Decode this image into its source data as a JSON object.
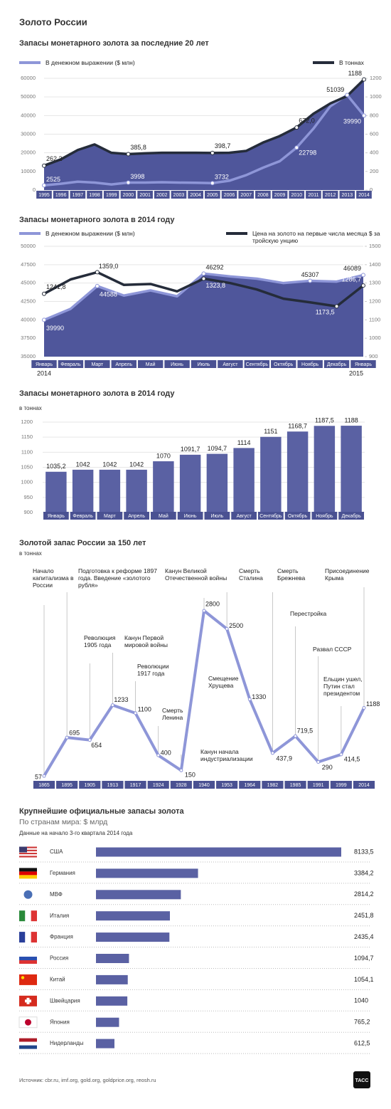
{
  "title": "Золото России",
  "chart_data": [
    {
      "type": "area",
      "title": "Запасы монетарного золота за последние 20 лет",
      "categories": [
        "1995",
        "1996",
        "1997",
        "1998",
        "1999",
        "2000",
        "2001",
        "2002",
        "2003",
        "2004",
        "2005",
        "2006",
        "2007",
        "2008",
        "2009",
        "2010",
        "2011",
        "2012",
        "2013",
        "2014"
      ],
      "series": [
        {
          "name": "В денежном выражении ($ млн)",
          "color": "#8e96d8",
          "values": [
            2525,
            3400,
            4500,
            4000,
            3000,
            3998,
            4000,
            4200,
            4000,
            3900,
            3732,
            5000,
            8000,
            12000,
            15500,
            22798,
            33000,
            45000,
            51039,
            39990
          ],
          "value_labels": [
            "2525",
            null,
            null,
            null,
            null,
            "3998",
            null,
            null,
            null,
            null,
            "3732",
            null,
            null,
            null,
            null,
            "22798",
            null,
            null,
            "51039",
            "39990"
          ]
        },
        {
          "name": "В тоннах",
          "color": "#252c3a",
          "axis": "y2",
          "fill": "#4f569b",
          "values": [
            262.2,
            330,
            430,
            490,
            400,
            385.8,
            395,
            400,
            400,
            400,
            398.7,
            400,
            420,
            510,
            580,
            672.0,
            820,
            930,
            1010,
            1188
          ],
          "value_labels": [
            "262,2",
            null,
            null,
            null,
            null,
            "385,8",
            null,
            null,
            null,
            null,
            "398,7",
            null,
            null,
            null,
            null,
            "672,0",
            null,
            null,
            null,
            "1188"
          ]
        }
      ],
      "ylim": [
        0,
        60000
      ],
      "yticks": [
        0,
        10000,
        20000,
        30000,
        40000,
        50000,
        60000
      ],
      "y2lim": [
        0,
        1200
      ],
      "y2ticks": [
        0,
        200,
        400,
        600,
        800,
        1000,
        1200
      ],
      "grid": true
    },
    {
      "type": "area",
      "title": "Запасы монетарного золота в 2014 году",
      "categories": [
        "Январь",
        "Февраль",
        "Март",
        "Апрель",
        "Май",
        "Июнь",
        "Июль",
        "Август",
        "Сентябрь",
        "Октябрь",
        "Ноябрь",
        "Декабрь",
        "Январь"
      ],
      "x_sublabels": [
        "2014",
        "2015"
      ],
      "series": [
        {
          "name": "В денежном выражении ($ млн)",
          "color": "#8e96d8",
          "fill": "#4f569b",
          "values": [
            39990,
            41500,
            44588,
            43300,
            44000,
            43200,
            46292,
            45900,
            45600,
            45000,
            45307,
            45200,
            46089
          ],
          "value_labels": [
            "39990",
            null,
            "44588",
            null,
            null,
            null,
            "46292",
            null,
            null,
            null,
            "45307",
            null,
            "46089"
          ]
        },
        {
          "name": "Цена на золото на первые числа месяца $ за тройскую унцию",
          "color": "#252c3a",
          "axis": "y2",
          "values": [
            1241.8,
            1320,
            1359.0,
            1290,
            1295,
            1255,
            1323.8,
            1300,
            1265,
            1215,
            1195,
            1173.5,
            1286.7
          ],
          "value_labels": [
            "1241,8",
            null,
            "1359,0",
            null,
            null,
            null,
            "1323,8",
            null,
            null,
            null,
            null,
            "1173,5",
            "1286,7"
          ]
        }
      ],
      "ylim": [
        35000,
        50000
      ],
      "yticks": [
        35000,
        37500,
        40000,
        42500,
        45000,
        47500,
        50000
      ],
      "y2lim": [
        900,
        1500
      ],
      "y2ticks": [
        900,
        1000,
        1100,
        1200,
        1300,
        1400,
        1500
      ],
      "grid": true
    },
    {
      "type": "bar",
      "title": "Запасы монетарного золота в 2014 году",
      "ylabel": "в тоннах",
      "color": "#5a61a3",
      "categories": [
        "Январь",
        "Февраль",
        "Март",
        "Апрель",
        "Май",
        "Июнь",
        "Июль",
        "Август",
        "Сентябрь",
        "Октябрь",
        "Ноябрь",
        "Декабрь"
      ],
      "values": [
        1035.2,
        1042,
        1042,
        1042,
        1070,
        1091.7,
        1094.7,
        1114,
        1151,
        1168.7,
        1187.5,
        1188
      ],
      "value_labels": [
        "1035,2",
        "1042",
        "1042",
        "1042",
        "1070",
        "1091,7",
        "1094,7",
        "1114",
        "1151",
        "1168,7",
        "1187,5",
        "1188"
      ],
      "ylim": [
        900,
        1200
      ],
      "yticks": [
        900,
        950,
        1000,
        1050,
        1100,
        1150,
        1200
      ],
      "grid": true
    },
    {
      "type": "line",
      "title": "Золотой запас России за 150 лет",
      "ylabel": "в тоннах",
      "color": "#8e96d8",
      "categories": [
        "1865",
        "1895",
        "1905",
        "1913",
        "1917",
        "1924",
        "1928",
        "1940",
        "1953",
        "1964",
        "1982",
        "1985",
        "1991",
        "1999",
        "2014"
      ],
      "values": [
        57,
        695,
        654,
        1233,
        1100,
        400,
        150,
        2800,
        2500,
        1330,
        437.9,
        719.5,
        290,
        414.5,
        1188
      ],
      "value_labels": [
        "57",
        "695",
        "654",
        "1233",
        "1100",
        "400",
        "150",
        "2800",
        "2500",
        "1330",
        "437,9",
        "719,5",
        "290",
        "414,5",
        "1188"
      ],
      "annotations": [
        "Начало капитализма в России",
        "Подготовка к реформе 1897 года. Введение «золотого рубля»",
        "Революция 1905 года",
        "Канун Первой мировой войны",
        "Революции 1917 года",
        "Смерть Ленина",
        "Канун начала индустриализации",
        "Канун Великой Отечественной войны",
        "Смерть Сталина",
        "Смещение Хрущева",
        "Смерть Брежнева",
        "Перестройка",
        "Развал СССР",
        "Ельцин ушел, Путин стал президентом",
        "Присоединение Крыма"
      ]
    },
    {
      "type": "hbar",
      "title": "Крупнейшие официальные запасы золота",
      "subtitle": "По странам мира: $ млрд",
      "note": "Данные на начало 3-го квартала 2014 года",
      "color": "#5a61a3",
      "categories": [
        "США",
        "Германия",
        "МВФ",
        "Италия",
        "Франция",
        "Россия",
        "Китай",
        "Швейцария",
        "Япония",
        "Нидерланды"
      ],
      "values": [
        8133.5,
        3384.2,
        2814.2,
        2451.8,
        2435.4,
        1094.7,
        1054.1,
        1040,
        765.2,
        612.5
      ],
      "value_labels": [
        "8133,5",
        "3384,2",
        "2814,2",
        "2451,8",
        "2435,4",
        "1094,7",
        "1054,1",
        "1040",
        "765,2",
        "612,5"
      ]
    }
  ],
  "source": "Источник: cbr.ru, imf.org, gold.org, goldprice.org, reosh.ru",
  "logo": "ТАСС"
}
